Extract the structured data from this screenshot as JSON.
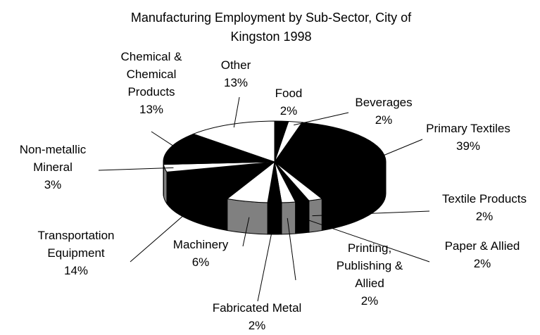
{
  "chart_data": {
    "type": "pie3d",
    "title": "Manufacturing Employment by Sub-Sector, City of Kingston 1998",
    "categories": [
      "Food",
      "Beverages",
      "Primary Textiles",
      "Textile Products",
      "Paper & Allied",
      "Printing, Publishing & Allied",
      "Fabricated Metal",
      "Machinery",
      "Transportation Equipment",
      "Non-metallic Mineral",
      "Chemical & Chemical Products",
      "Other"
    ],
    "values": [
      2,
      2,
      39,
      2,
      2,
      2,
      2,
      6,
      14,
      3,
      13,
      13
    ],
    "value_labels": [
      "2%",
      "2%",
      "39%",
      "2%",
      "2%",
      "2%",
      "2%",
      "6%",
      "14%",
      "3%",
      "13%",
      "13%"
    ],
    "colors": [
      "#000000",
      "#ffffff",
      "#000000",
      "#ffffff",
      "#000000",
      "#ffffff",
      "#000000",
      "#ffffff",
      "#000000",
      "#ffffff",
      "#000000",
      "#ffffff"
    ]
  }
}
